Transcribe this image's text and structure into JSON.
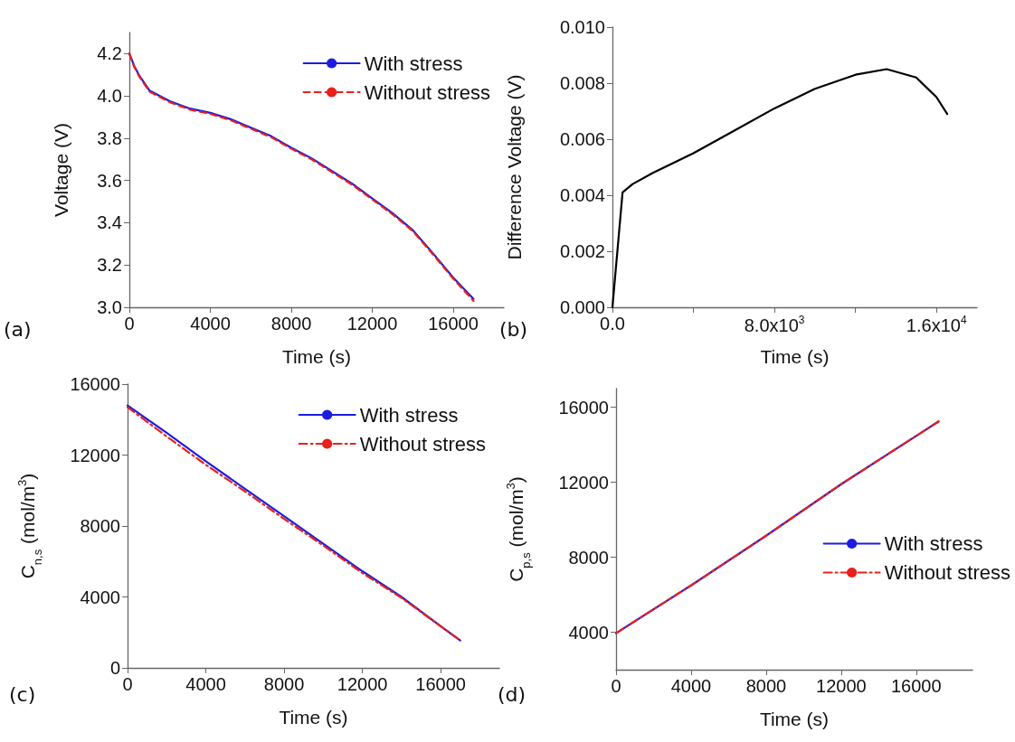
{
  "chart_data": [
    {
      "type": "line",
      "xlabel": "Time (s)",
      "ylabel": "Voltage (V)",
      "annotations": [
        "(a)"
      ],
      "legend": "top right",
      "marker": "none",
      "x": [
        0,
        250,
        500,
        1000,
        2000,
        3000,
        4000,
        5000,
        6000,
        7000,
        8000,
        9000,
        10000,
        11000,
        12000,
        13000,
        14000,
        15000,
        16000,
        17000
      ],
      "series": [
        {
          "name": "With stress",
          "color": "#1c1ce0",
          "line_style": "solid",
          "values": [
            4.2,
            4.14,
            4.095,
            4.025,
            3.975,
            3.94,
            3.92,
            3.89,
            3.85,
            3.81,
            3.755,
            3.705,
            3.645,
            3.585,
            3.515,
            3.445,
            3.365,
            3.255,
            3.14,
            3.04
          ]
        },
        {
          "name": "Without stress",
          "color": "#e8211c",
          "line_style": "dashed",
          "values": [
            4.2,
            4.135,
            4.09,
            4.02,
            3.97,
            3.935,
            3.915,
            3.885,
            3.845,
            3.805,
            3.75,
            3.7,
            3.64,
            3.58,
            3.51,
            3.44,
            3.36,
            3.25,
            3.135,
            3.03
          ]
        }
      ],
      "xlim": [
        0,
        18500
      ],
      "xticks": [
        0,
        4000,
        8000,
        12000,
        16000
      ],
      "ylim": [
        3.0,
        4.3
      ],
      "yticks": [
        {
          "value": 3.0,
          "label": "3.0"
        },
        3.2,
        3.4,
        3.6,
        3.8,
        {
          "value": 4.0,
          "label": "4.0"
        },
        4.2
      ]
    },
    {
      "type": "line",
      "xlabel": "Time (s)",
      "ylabel": "Difference Voltage (V)",
      "annotations": [
        "(b)"
      ],
      "marker": "none",
      "x": [
        0,
        500,
        1000,
        2000,
        4000,
        6000,
        8000,
        10000,
        12000,
        13540,
        15000,
        16000,
        16530
      ],
      "series": [
        {
          "color": "#000000",
          "line_style": "solid",
          "values": [
            0,
            0.0041,
            0.0044,
            0.0048,
            0.0055,
            0.0063,
            0.0071,
            0.0078,
            0.0083,
            0.0085,
            0.0082,
            0.0075,
            0.0069
          ]
        }
      ],
      "xlim": [
        0,
        18000
      ],
      "xticks": [
        {
          "value": 0,
          "label": "0.0"
        },
        {
          "value": 4000,
          "label": null
        },
        {
          "value": 8000,
          "label": "8.0x10$^{3}$"
        },
        {
          "value": 12000,
          "label": null
        },
        {
          "value": 16000,
          "label": "1.6x10$^{4}$"
        }
      ],
      "ylim": [
        0,
        0.01
      ],
      "yticks": [
        {
          "value": 0,
          "label": "0.000"
        },
        {
          "value": 0.002,
          "label": "0.002"
        },
        {
          "value": 0.004,
          "label": "0.004"
        },
        {
          "value": 0.006,
          "label": "0.006"
        },
        {
          "value": 0.008,
          "label": "0.008"
        },
        {
          "value": 0.01,
          "label": "0.010"
        }
      ]
    },
    {
      "type": "line",
      "xlabel": "Time (s)",
      "ylabel": "C$_{n,s}$ (mol/m$^{3}$)",
      "annotations": [
        "(c)"
      ],
      "legend": "top right",
      "marker": "none",
      "x": [
        0,
        2000,
        4000,
        6000,
        8000,
        10000,
        12000,
        14000,
        16000,
        17000
      ],
      "series": [
        {
          "name": "With stress",
          "color": "#1c1ce0",
          "line_style": "solid",
          "values": [
            14800,
            13250,
            11650,
            10100,
            8550,
            7000,
            5450,
            4000,
            2350,
            1550
          ]
        },
        {
          "name": "Without stress",
          "color": "#e8211c",
          "line_style": "dashdot",
          "values": [
            14700,
            13050,
            11450,
            9950,
            8400,
            6900,
            5350,
            3950,
            2350,
            1550
          ]
        }
      ],
      "xlim": [
        0,
        19000
      ],
      "xticks": [
        0,
        4000,
        8000,
        12000,
        16000
      ],
      "ylim": [
        0,
        16000
      ],
      "yticks": [
        0,
        4000,
        8000,
        12000,
        16000
      ]
    },
    {
      "type": "line",
      "xlabel": "Time (s)",
      "ylabel": "C$_{p,s}$ (mol/m$^{3}$)",
      "annotations": [
        "(d)"
      ],
      "legend": "right",
      "marker": "none",
      "x": [
        0,
        4000,
        8000,
        12000,
        17200
      ],
      "series": [
        {
          "name": "With stress",
          "color": "#1c1ce0",
          "line_style": "solid",
          "values": [
            3950,
            6500,
            9150,
            11900,
            15250
          ]
        },
        {
          "name": "Without stress",
          "color": "#e8211c",
          "line_style": "dashdot",
          "values": [
            3950,
            6500,
            9150,
            11900,
            15250
          ]
        }
      ],
      "xlim": [
        0,
        19000
      ],
      "xticks": [
        0,
        4000,
        8000,
        12000,
        16000
      ],
      "ylim": [
        2000,
        17000
      ],
      "yticks": [
        4000,
        8000,
        12000,
        16000
      ]
    }
  ]
}
